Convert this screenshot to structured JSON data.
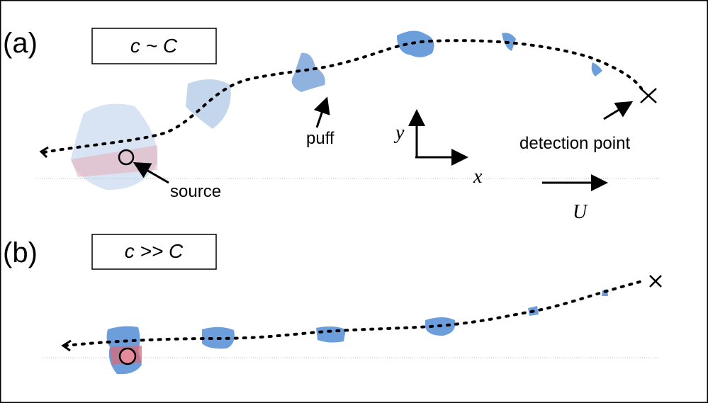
{
  "panels": [
    {
      "label": "(a)",
      "condition": "c ~ C"
    },
    {
      "label": "(b)",
      "condition": "c >> C"
    }
  ],
  "labels": {
    "puff": "puff",
    "source": "source",
    "detection": "detection point",
    "x_axis": "x",
    "y_axis": "y",
    "flow": "U"
  }
}
